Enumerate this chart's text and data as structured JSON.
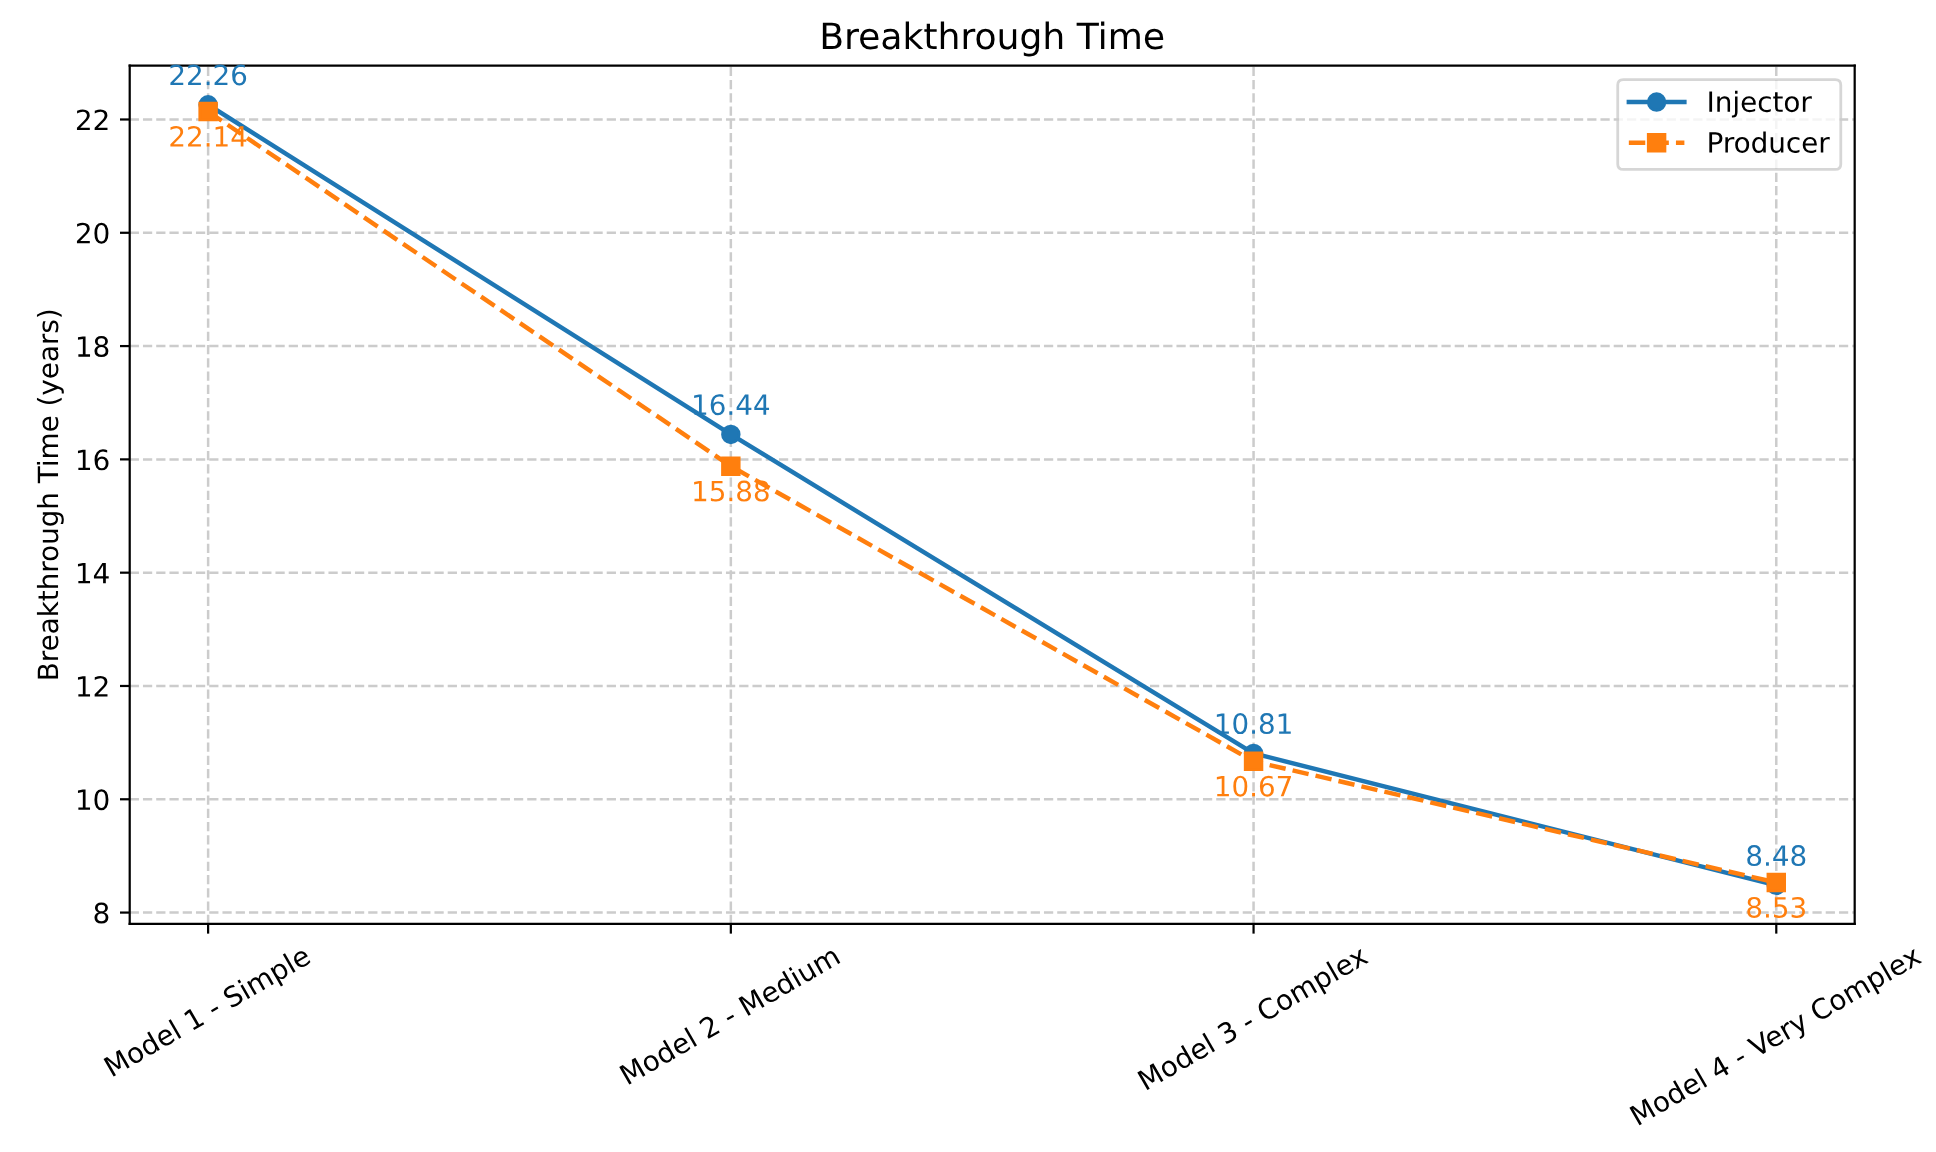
{
  "chart_data": {
    "type": "line",
    "title": "Breakthrough Time",
    "ylabel": "Breakthrough Time (years)",
    "categories": [
      "Model 1 - Simple",
      "Model 2 - Medium",
      "Model 3 - Complex",
      "Model 4 - Very Complex"
    ],
    "series": [
      {
        "name": "Injector",
        "color": "#1f77b4",
        "values": [
          22.26,
          16.44,
          10.81,
          8.48
        ],
        "marker": "circle",
        "line_style": "solid"
      },
      {
        "name": "Producer",
        "color": "#ff7f0e",
        "values": [
          22.14,
          15.88,
          10.67,
          8.53
        ],
        "marker": "square",
        "line_style": "dashed"
      }
    ],
    "ylim": [
      7.8,
      22.95
    ],
    "yticks": [
      8,
      10,
      12,
      14,
      16,
      18,
      20,
      22
    ],
    "grid": true,
    "legend": "top right",
    "data_labels": true
  }
}
